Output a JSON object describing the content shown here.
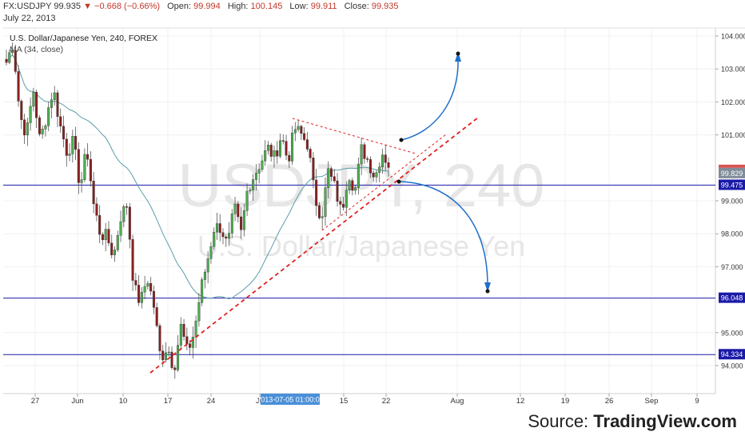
{
  "header": {
    "symbol": "FX:USDJPY",
    "last": "99.935",
    "change_arrow": "▼",
    "change": "−0.668 (−0.66%)",
    "open_label": "Open:",
    "open": "99.994",
    "high_label": "High:",
    "high": "100.145",
    "low_label": "Low:",
    "low": "99.911",
    "close_label": "Close:",
    "close": "99.935",
    "date": "July 22, 2013"
  },
  "legend": {
    "title": "U.S. Dollar/Japanese Yen, 240, FOREX",
    "ma": "MA (34, close)"
  },
  "watermark": {
    "line1": "USDJPY, 240",
    "line2": "U.S. Dollar/Japanese Yen"
  },
  "source": {
    "prefix": "Source: ",
    "brand": "TradingView.com"
  },
  "colors": {
    "up": "#4caf50",
    "down": "#8b1e1e",
    "ma": "#5a9ea8",
    "hline": "#1a1aa8",
    "trend": "#e02020",
    "arrow": "#1e6fc8",
    "price_tag": "#d9534f"
  },
  "chart_data": {
    "type": "candlestick",
    "y_axis": {
      "range": [
        93.2,
        104.4
      ],
      "ticks": [
        "104.000",
        "103.000",
        "102.000",
        "101.000",
        "99.000",
        "98.000",
        "97.000",
        "95.000",
        "94.000"
      ],
      "tick_values": [
        104,
        103,
        102,
        101,
        99,
        98,
        97,
        95,
        94
      ]
    },
    "x_axis": {
      "ticks": [
        "27",
        "Jun",
        "10",
        "17",
        "24",
        "Ju",
        "15",
        "22",
        "Aug",
        "12",
        "19",
        "26",
        "Sep",
        "9"
      ],
      "cursor_label": "2013-07-05 01:00:00"
    },
    "price_labels": [
      {
        "text": "99.829",
        "value": 99.829,
        "kind": "last"
      },
      {
        "text": "99.475",
        "value": 99.475,
        "kind": "level"
      },
      {
        "text": "96.048",
        "value": 96.048,
        "kind": "level"
      },
      {
        "text": "94.334",
        "value": 94.334,
        "kind": "level"
      }
    ],
    "horizontal_levels": [
      99.475,
      96.048,
      94.334
    ],
    "ma_period": 34,
    "path": [
      103.2,
      103.8,
      101.6,
      101.0,
      102.4,
      100.8,
      101.6,
      102.4,
      101.3,
      100.5,
      100.8,
      99.4,
      100.6,
      98.9,
      98.0,
      97.9,
      97.3,
      98.5,
      98.9,
      96.4,
      95.9,
      96.7,
      95.8,
      94.2,
      94.6,
      93.9,
      95.2,
      94.4,
      95.0,
      96.3,
      97.2,
      98.2,
      98.2,
      97.6,
      98.8,
      98.0,
      99.4,
      99.8,
      100.2,
      100.6,
      100.3,
      101.0,
      100.2,
      101.2,
      101.0,
      100.7,
      99.1,
      98.5,
      99.9,
      99.4,
      98.6,
      99.9,
      99.3,
      100.6,
      100.2,
      99.7,
      100.5,
      100.1
    ]
  }
}
